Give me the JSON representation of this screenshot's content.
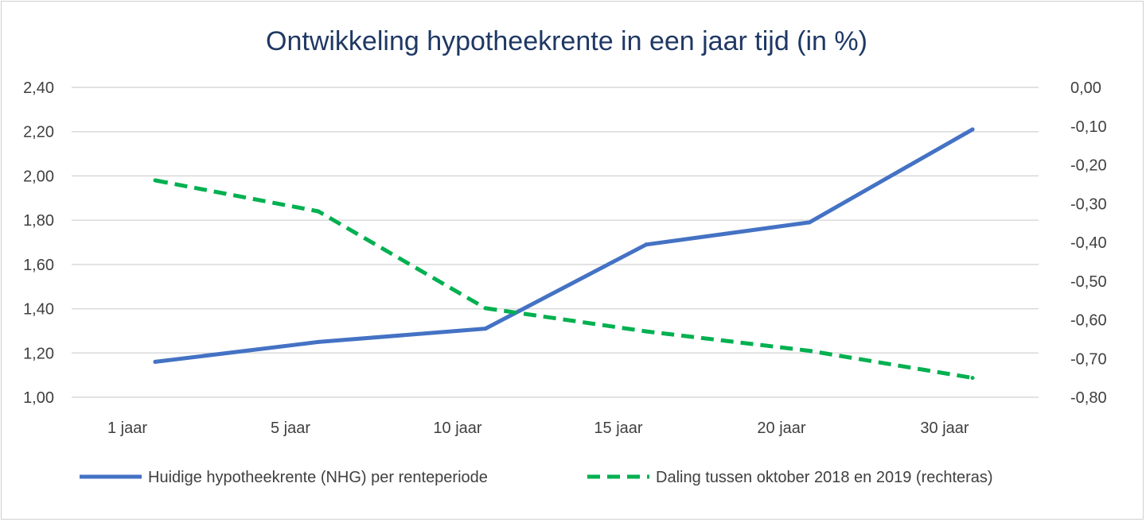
{
  "chart_data": {
    "type": "line",
    "title": "Ontwikkeling hypotheekrente  in een jaar tijd (in %)",
    "categories": [
      "1 jaar",
      "5 jaar",
      "10 jaar",
      "15 jaar",
      "20 jaar",
      "30 jaar"
    ],
    "y_left": {
      "min": 1.0,
      "max": 2.4,
      "step": 0.2,
      "tick_labels": [
        "1,00",
        "1,20",
        "1,40",
        "1,60",
        "1,80",
        "2,00",
        "2,20",
        "2,40"
      ]
    },
    "y_right": {
      "min": -0.8,
      "max": 0.0,
      "step": 0.1,
      "tick_labels": [
        "-0,80",
        "-0,70",
        "-0,60",
        "-0,50",
        "-0,40",
        "-0,30",
        "-0,20",
        "-0,10",
        "0,00"
      ]
    },
    "grid": true,
    "legend_position": "bottom",
    "series": [
      {
        "name": "Huidige hypotheekrente (NHG) per renteperiode",
        "axis": "left",
        "color": "#4472c4",
        "style": "solid",
        "values": [
          1.16,
          1.25,
          1.31,
          1.69,
          1.79,
          2.21
        ]
      },
      {
        "name": "Daling tussen oktober 2018 en 2019 (rechteras)",
        "axis": "right",
        "color": "#00b050",
        "style": "dashed",
        "values": [
          -0.24,
          -0.32,
          -0.57,
          -0.63,
          -0.68,
          -0.75
        ]
      }
    ]
  }
}
